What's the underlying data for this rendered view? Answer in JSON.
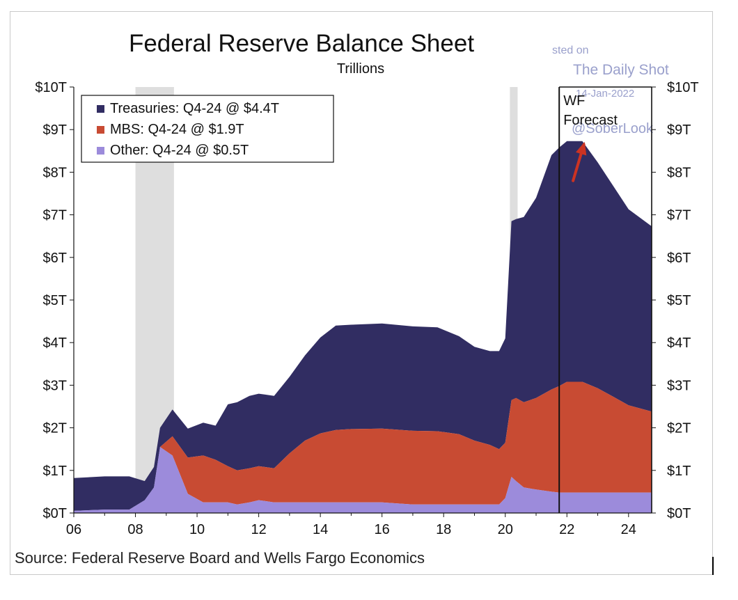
{
  "chart_data": {
    "type": "area",
    "stacked": true,
    "title": "Federal Reserve Balance Sheet",
    "subtitle": "Trillions",
    "source": "Source: Federal Reserve Board and Wells Fargo Economics",
    "x_ticks": [
      "06",
      "08",
      "10",
      "12",
      "14",
      "16",
      "18",
      "20",
      "22",
      "24"
    ],
    "x_tick_values": [
      2006,
      2008,
      2010,
      2012,
      2014,
      2016,
      2018,
      2020,
      2022,
      2024
    ],
    "xlim": [
      2006,
      2024.75
    ],
    "y_ticks": [
      "$0T",
      "$1T",
      "$2T",
      "$3T",
      "$4T",
      "$5T",
      "$6T",
      "$7T",
      "$8T",
      "$9T",
      "$10T"
    ],
    "ylim": [
      0,
      10
    ],
    "ylabel": "Trillions",
    "legend_position": "top-left",
    "recession_shading": [
      [
        2008.0,
        2009.25
      ],
      [
        2020.15,
        2020.4
      ]
    ],
    "forecast_line_x": 2021.75,
    "forecast_label": [
      "WF",
      "Forecast"
    ],
    "forecast_box": [
      2021.75,
      2024.75
    ],
    "watermark": {
      "line1": "sted on",
      "line2": "The Daily Shot",
      "line3": "14-Jan-2022",
      "line4": "@SoberLook"
    },
    "arrow": {
      "from": [
        2022.2,
        7.8
      ],
      "to": [
        2022.55,
        8.65
      ],
      "color": "#cc3322"
    },
    "x": [
      2006.0,
      2007.0,
      2007.8,
      2008.3,
      2008.6,
      2008.8,
      2009.2,
      2009.7,
      2010.2,
      2010.6,
      2011.0,
      2011.3,
      2011.7,
      2012.0,
      2012.5,
      2013.0,
      2013.5,
      2014.0,
      2014.5,
      2015.0,
      2016.0,
      2017.0,
      2017.8,
      2018.5,
      2019.0,
      2019.5,
      2019.8,
      2020.0,
      2020.2,
      2020.35,
      2020.6,
      2021.0,
      2021.5,
      2021.75,
      2022.0,
      2022.5,
      2023.0,
      2023.5,
      2024.0,
      2024.75
    ],
    "series": [
      {
        "name": "Treasuries: Q4-24 @ $4.4T",
        "color": "#312d62",
        "values": [
          0.77,
          0.78,
          0.78,
          0.45,
          0.48,
          0.45,
          0.63,
          0.68,
          0.77,
          0.8,
          1.45,
          1.6,
          1.7,
          1.7,
          1.7,
          1.8,
          2.0,
          2.25,
          2.45,
          2.45,
          2.47,
          2.45,
          2.44,
          2.3,
          2.2,
          2.2,
          2.3,
          2.45,
          4.2,
          4.2,
          4.35,
          4.7,
          5.5,
          5.6,
          5.65,
          5.65,
          5.3,
          4.95,
          4.6,
          4.35
        ]
      },
      {
        "name": "MBS: Q4-24 @ $1.9T",
        "color": "#c84b33",
        "values": [
          0.0,
          0.0,
          0.0,
          0.0,
          0.0,
          0.0,
          0.45,
          0.85,
          1.1,
          1.0,
          0.85,
          0.8,
          0.8,
          0.8,
          0.8,
          1.15,
          1.45,
          1.62,
          1.7,
          1.72,
          1.73,
          1.73,
          1.72,
          1.65,
          1.5,
          1.4,
          1.3,
          1.3,
          1.8,
          1.95,
          2.0,
          2.15,
          2.4,
          2.5,
          2.6,
          2.6,
          2.45,
          2.25,
          2.05,
          1.9
        ]
      },
      {
        "name": "Other: Q4-24 @ $0.5T",
        "color": "#9c8bdb",
        "values": [
          0.05,
          0.08,
          0.08,
          0.3,
          0.6,
          1.55,
          1.35,
          0.45,
          0.25,
          0.25,
          0.25,
          0.2,
          0.25,
          0.3,
          0.25,
          0.25,
          0.25,
          0.25,
          0.25,
          0.25,
          0.25,
          0.2,
          0.2,
          0.2,
          0.2,
          0.2,
          0.2,
          0.35,
          0.85,
          0.75,
          0.6,
          0.55,
          0.5,
          0.48,
          0.48,
          0.48,
          0.48,
          0.48,
          0.48,
          0.48
        ]
      }
    ]
  }
}
